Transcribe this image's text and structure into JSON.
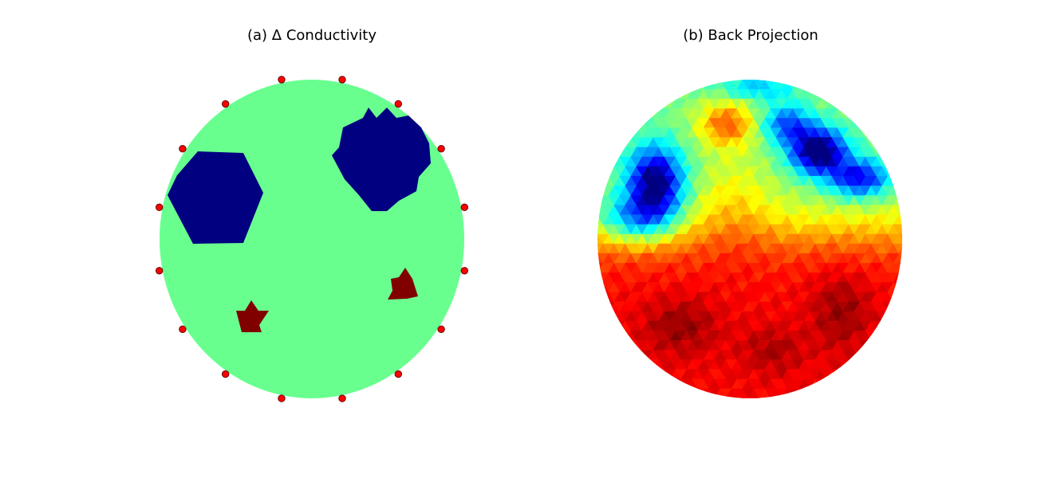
{
  "chart_data": [
    {
      "type": "heatmap",
      "title": "(a) Δ Conductivity",
      "colormap": "jet",
      "background_color": "#69ff8f",
      "electrode_count": 16,
      "electrode_color": "#ff0000",
      "inclusions": [
        {
          "name": "",
          "shape": "hexagon",
          "color": "#000080",
          "kind": "low"
        },
        {
          "name": "",
          "shape": "star",
          "color": "#000080",
          "kind": "low"
        },
        {
          "name": "",
          "shape": "star",
          "color": "#800000",
          "kind": "high"
        },
        {
          "name": "",
          "shape": "star",
          "color": "#800000",
          "kind": "high"
        }
      ]
    },
    {
      "type": "heatmap",
      "title": "(b) Back Projection",
      "colormap": "jet",
      "description_regions": [
        {
          "region": "upper-left arc",
          "level": "low",
          "color": "#0000ff"
        },
        {
          "region": "upper-right arc",
          "level": "low",
          "color": "#0000ff"
        },
        {
          "region": "top center",
          "level": "mid-high",
          "color": "#ff8000"
        },
        {
          "region": "lower half",
          "level": "high",
          "color": "#c00000"
        }
      ]
    }
  ]
}
